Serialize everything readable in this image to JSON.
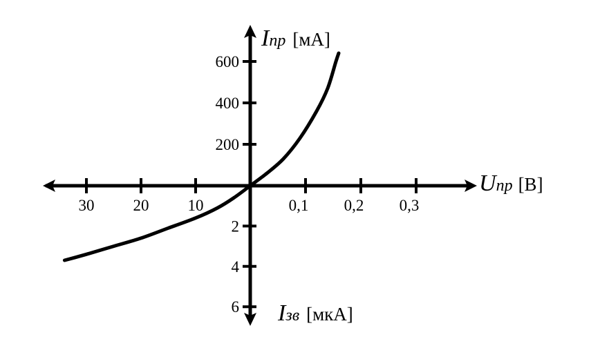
{
  "chart_data": {
    "type": "line",
    "axes": {
      "y_positive": {
        "symbol": "I",
        "subscript": "пр",
        "unit": "[мА]",
        "ticks": [
          {
            "value": 200,
            "label": "200"
          },
          {
            "value": 400,
            "label": "400"
          },
          {
            "value": 600,
            "label": "600"
          }
        ]
      },
      "y_negative": {
        "symbol": "I",
        "subscript": "зв",
        "unit": "[мкА]",
        "ticks": [
          {
            "value": 2,
            "label": "2"
          },
          {
            "value": 4,
            "label": "4"
          },
          {
            "value": 6,
            "label": "6"
          }
        ]
      },
      "x_positive": {
        "symbol": "U",
        "subscript": "пр",
        "unit": "[В]",
        "ticks": [
          {
            "value": 0.1,
            "label": "0,1"
          },
          {
            "value": 0.2,
            "label": "0,2"
          },
          {
            "value": 0.3,
            "label": "0,3"
          }
        ]
      },
      "x_negative": {
        "ticks": [
          {
            "value": 10,
            "label": "10"
          },
          {
            "value": 20,
            "label": "20"
          },
          {
            "value": 30,
            "label": "30"
          }
        ]
      }
    },
    "forward_branch": {
      "x_unit": "В",
      "y_unit": "мА",
      "points": [
        [
          0,
          0
        ],
        [
          0.03,
          60
        ],
        [
          0.06,
          130
        ],
        [
          0.09,
          230
        ],
        [
          0.12,
          360
        ],
        [
          0.14,
          470
        ],
        [
          0.155,
          600
        ],
        [
          0.16,
          640
        ]
      ]
    },
    "reverse_branch": {
      "x_unit": "В",
      "y_unit": "мкА",
      "points": [
        [
          0,
          0
        ],
        [
          3,
          0.6
        ],
        [
          6,
          1.1
        ],
        [
          10,
          1.6
        ],
        [
          15,
          2.1
        ],
        [
          20,
          2.6
        ],
        [
          25,
          3.0
        ],
        [
          30,
          3.4
        ],
        [
          34,
          3.7
        ]
      ]
    }
  }
}
